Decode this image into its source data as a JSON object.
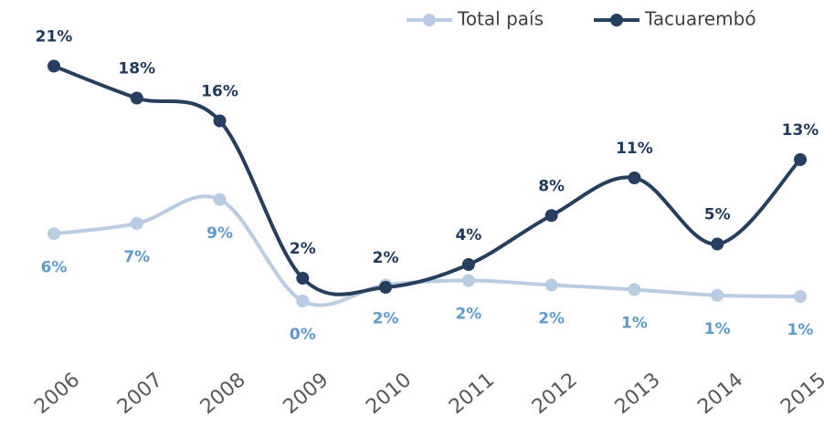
{
  "chart_data": {
    "type": "line",
    "categories": [
      "2006",
      "2007",
      "2008",
      "2009",
      "2010",
      "2011",
      "2012",
      "2013",
      "2014",
      "2015"
    ],
    "ylim": [
      -3,
      23
    ],
    "series": [
      {
        "name": "Total país",
        "color": "#b8cce4",
        "label_color": "#5b9bd5",
        "values": [
          6.3,
          7.2,
          9.3,
          0.4,
          1.8,
          2.2,
          1.8,
          1.4,
          0.9,
          0.8
        ],
        "value_labels": [
          "6%",
          "7%",
          "9%",
          "0%",
          "2%",
          "2%",
          "2%",
          "1%",
          "1%",
          "1%"
        ]
      },
      {
        "name": "Tacuarembó",
        "color": "#243f60",
        "label_color": "#1f3a5f",
        "values": [
          21.0,
          18.2,
          16.2,
          2.4,
          1.6,
          3.6,
          7.9,
          11.2,
          5.4,
          12.8
        ],
        "value_labels": [
          "21%",
          "18%",
          "16%",
          "2%",
          "2%",
          "4%",
          "8%",
          "11%",
          "5%",
          "13%"
        ]
      }
    ]
  }
}
